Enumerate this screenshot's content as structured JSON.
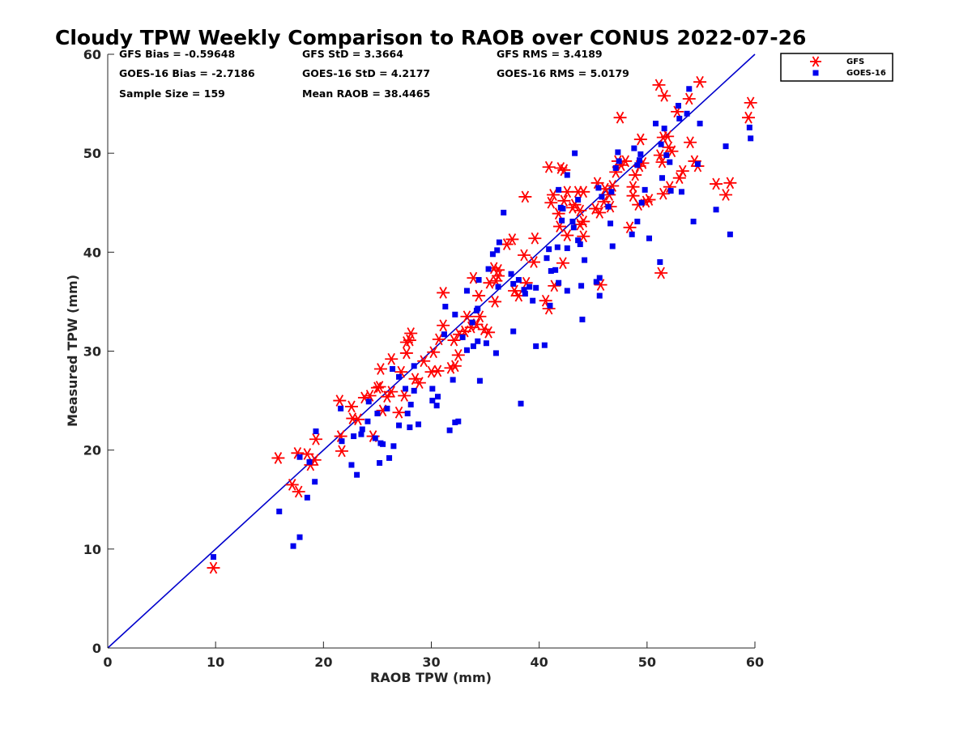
{
  "chart_data": {
    "type": "scatter",
    "title": "Cloudy TPW Weekly Comparison to RAOB over CONUS 2022-07-26",
    "xlabel": "RAOB TPW (mm)",
    "ylabel": "Measured TPW (mm)",
    "xlim": [
      0,
      60
    ],
    "ylim": [
      0,
      60
    ],
    "xticks": [
      0,
      10,
      20,
      30,
      40,
      50,
      60
    ],
    "yticks": [
      0,
      10,
      20,
      30,
      40,
      50,
      60
    ],
    "grid": false,
    "legend_position": "outside-top-right",
    "reference_line": {
      "from": [
        0,
        0
      ],
      "to": [
        60,
        60
      ],
      "color": "#0000cc"
    },
    "stats": {
      "gfs_bias": "GFS Bias = -0.59648",
      "gfs_std": "GFS StD = 3.3664",
      "gfs_rms": "GFS RMS = 3.4189",
      "goes_bias": "GOES-16 Bias = -2.7186",
      "goes_std": "GOES-16 StD = 4.2177",
      "goes_rms": "GOES-16 RMS = 5.0179",
      "sample_size": "Sample Size = 159",
      "mean_raob": "Mean RAOB = 38.4465"
    },
    "series": [
      {
        "name": "GFS",
        "marker": "asterisk",
        "color": "#ff0000",
        "points": [
          [
            9.8,
            8.1
          ],
          [
            15.8,
            19.2
          ],
          [
            17.1,
            16.5
          ],
          [
            17.6,
            19.7
          ],
          [
            17.7,
            15.8
          ],
          [
            18.5,
            19.6
          ],
          [
            18.8,
            18.5
          ],
          [
            19.3,
            21.1
          ],
          [
            19.2,
            19.0
          ],
          [
            21.5,
            25.0
          ],
          [
            21.6,
            21.4
          ],
          [
            21.7,
            19.9
          ],
          [
            22.6,
            24.4
          ],
          [
            22.7,
            23.2
          ],
          [
            23.2,
            23.1
          ],
          [
            23.8,
            25.3
          ],
          [
            24.3,
            25.5
          ],
          [
            24.6,
            21.4
          ],
          [
            25.0,
            26.3
          ],
          [
            25.2,
            26.4
          ],
          [
            25.3,
            28.2
          ],
          [
            25.5,
            24.0
          ],
          [
            25.9,
            25.4
          ],
          [
            26.3,
            29.2
          ],
          [
            26.3,
            25.9
          ],
          [
            27.0,
            23.8
          ],
          [
            27.2,
            27.9
          ],
          [
            27.5,
            25.5
          ],
          [
            27.7,
            29.8
          ],
          [
            27.7,
            30.9
          ],
          [
            28.0,
            31.1
          ],
          [
            28.1,
            31.8
          ],
          [
            28.5,
            27.2
          ],
          [
            28.9,
            26.8
          ],
          [
            29.3,
            29.0
          ],
          [
            30.0,
            27.9
          ],
          [
            30.2,
            29.9
          ],
          [
            30.6,
            28.0
          ],
          [
            30.7,
            31.2
          ],
          [
            31.1,
            32.6
          ],
          [
            31.1,
            35.9
          ],
          [
            31.8,
            28.3
          ],
          [
            32.2,
            28.5
          ],
          [
            32.1,
            31.1
          ],
          [
            32.5,
            29.6
          ],
          [
            32.6,
            31.7
          ],
          [
            33.1,
            32.0
          ],
          [
            33.3,
            33.5
          ],
          [
            33.7,
            32.4
          ],
          [
            33.9,
            37.4
          ],
          [
            34.2,
            32.7
          ],
          [
            34.4,
            35.6
          ],
          [
            34.5,
            33.5
          ],
          [
            34.9,
            32.2
          ],
          [
            35.3,
            31.9
          ],
          [
            35.4,
            36.9
          ],
          [
            35.8,
            38.4
          ],
          [
            35.9,
            35.0
          ],
          [
            36.0,
            37.1
          ],
          [
            36.2,
            37.6
          ],
          [
            36.2,
            38.2
          ],
          [
            37.0,
            40.8
          ],
          [
            37.5,
            41.3
          ],
          [
            37.7,
            36.1
          ],
          [
            38.1,
            35.6
          ],
          [
            38.6,
            39.7
          ],
          [
            38.7,
            45.6
          ],
          [
            38.8,
            36.9
          ],
          [
            39.5,
            39.0
          ],
          [
            39.6,
            41.4
          ],
          [
            40.6,
            35.1
          ],
          [
            40.9,
            34.3
          ],
          [
            40.9,
            48.6
          ],
          [
            41.1,
            45.0
          ],
          [
            41.3,
            45.8
          ],
          [
            41.4,
            36.6
          ],
          [
            41.8,
            43.9
          ],
          [
            41.9,
            42.6
          ],
          [
            42.0,
            48.5
          ],
          [
            42.3,
            48.3
          ],
          [
            42.2,
            38.9
          ],
          [
            42.3,
            45.2
          ],
          [
            42.6,
            41.7
          ],
          [
            42.6,
            46.1
          ],
          [
            43.1,
            44.5
          ],
          [
            43.3,
            44.8
          ],
          [
            43.6,
            46.1
          ],
          [
            43.8,
            42.8
          ],
          [
            43.8,
            44.2
          ],
          [
            44.1,
            41.6
          ],
          [
            44.1,
            43.1
          ],
          [
            44.1,
            46.1
          ],
          [
            45.2,
            44.4
          ],
          [
            45.4,
            47.0
          ],
          [
            45.6,
            44.0
          ],
          [
            45.7,
            36.7
          ],
          [
            46.0,
            45.1
          ],
          [
            46.1,
            46.4
          ],
          [
            46.5,
            45.8
          ],
          [
            46.6,
            44.6
          ],
          [
            46.8,
            46.7
          ],
          [
            47.1,
            48.1
          ],
          [
            47.3,
            49.2
          ],
          [
            47.5,
            53.6
          ],
          [
            47.6,
            48.8
          ],
          [
            48.0,
            49.2
          ],
          [
            48.4,
            42.5
          ],
          [
            48.7,
            45.7
          ],
          [
            48.7,
            46.6
          ],
          [
            48.9,
            47.8
          ],
          [
            49.2,
            44.8
          ],
          [
            49.3,
            48.7
          ],
          [
            49.4,
            51.4
          ],
          [
            49.6,
            49.0
          ],
          [
            49.9,
            45.1
          ],
          [
            50.2,
            45.3
          ],
          [
            51.1,
            56.9
          ],
          [
            51.2,
            49.8
          ],
          [
            51.3,
            37.9
          ],
          [
            51.4,
            49.1
          ],
          [
            51.5,
            45.9
          ],
          [
            51.5,
            51.6
          ],
          [
            51.6,
            55.8
          ],
          [
            51.9,
            51.7
          ],
          [
            52.0,
            50.6
          ],
          [
            52.1,
            46.6
          ],
          [
            52.3,
            50.2
          ],
          [
            52.8,
            54.2
          ],
          [
            53.0,
            47.5
          ],
          [
            53.3,
            48.2
          ],
          [
            53.9,
            55.5
          ],
          [
            54.0,
            51.1
          ],
          [
            54.4,
            49.2
          ],
          [
            54.7,
            48.7
          ],
          [
            54.9,
            57.2
          ],
          [
            56.4,
            46.9
          ],
          [
            57.3,
            45.8
          ],
          [
            57.7,
            47.0
          ],
          [
            59.4,
            53.6
          ],
          [
            59.6,
            55.1
          ]
        ]
      },
      {
        "name": "GOES-16",
        "marker": "square",
        "color": "#0000ee",
        "points": [
          [
            9.8,
            9.2
          ],
          [
            15.9,
            13.8
          ],
          [
            17.2,
            10.3
          ],
          [
            17.8,
            11.2
          ],
          [
            17.8,
            19.3
          ],
          [
            18.5,
            15.2
          ],
          [
            18.7,
            18.8
          ],
          [
            19.2,
            16.8
          ],
          [
            19.3,
            21.9
          ],
          [
            21.6,
            24.2
          ],
          [
            21.7,
            20.9
          ],
          [
            22.6,
            18.5
          ],
          [
            22.8,
            21.4
          ],
          [
            23.1,
            17.5
          ],
          [
            23.5,
            21.6
          ],
          [
            23.6,
            22.1
          ],
          [
            24.1,
            22.9
          ],
          [
            24.2,
            24.9
          ],
          [
            24.8,
            21.2
          ],
          [
            25.0,
            23.7
          ],
          [
            25.2,
            18.7
          ],
          [
            25.3,
            20.7
          ],
          [
            25.5,
            20.6
          ],
          [
            25.9,
            24.2
          ],
          [
            26.1,
            19.2
          ],
          [
            26.4,
            28.2
          ],
          [
            26.5,
            20.4
          ],
          [
            27.0,
            27.4
          ],
          [
            27.0,
            22.5
          ],
          [
            27.6,
            26.2
          ],
          [
            27.8,
            23.7
          ],
          [
            28.0,
            22.3
          ],
          [
            28.1,
            24.6
          ],
          [
            28.4,
            26.0
          ],
          [
            28.4,
            28.5
          ],
          [
            28.8,
            22.6
          ],
          [
            30.1,
            26.2
          ],
          [
            30.1,
            25.0
          ],
          [
            30.5,
            24.5
          ],
          [
            30.6,
            25.4
          ],
          [
            31.2,
            31.7
          ],
          [
            31.3,
            34.5
          ],
          [
            31.7,
            22.0
          ],
          [
            32.0,
            27.1
          ],
          [
            32.2,
            22.8
          ],
          [
            32.5,
            22.9
          ],
          [
            32.2,
            33.7
          ],
          [
            32.9,
            31.4
          ],
          [
            33.3,
            36.1
          ],
          [
            33.3,
            30.1
          ],
          [
            33.8,
            32.9
          ],
          [
            33.9,
            30.5
          ],
          [
            34.3,
            31.0
          ],
          [
            34.2,
            34.1
          ],
          [
            34.3,
            34.3
          ],
          [
            34.4,
            37.2
          ],
          [
            34.5,
            27.0
          ],
          [
            35.1,
            30.8
          ],
          [
            35.3,
            38.3
          ],
          [
            35.7,
            39.8
          ],
          [
            36.0,
            29.8
          ],
          [
            36.1,
            40.2
          ],
          [
            36.2,
            36.5
          ],
          [
            36.3,
            41.0
          ],
          [
            36.7,
            44.0
          ],
          [
            37.4,
            37.8
          ],
          [
            37.6,
            36.8
          ],
          [
            37.6,
            32.0
          ],
          [
            38.1,
            37.2
          ],
          [
            38.3,
            24.7
          ],
          [
            38.6,
            36.2
          ],
          [
            38.7,
            35.8
          ],
          [
            39.1,
            36.5
          ],
          [
            39.4,
            35.1
          ],
          [
            39.7,
            36.4
          ],
          [
            39.7,
            30.5
          ],
          [
            40.5,
            30.6
          ],
          [
            40.7,
            39.4
          ],
          [
            40.9,
            40.3
          ],
          [
            41.0,
            34.6
          ],
          [
            41.1,
            38.1
          ],
          [
            41.5,
            38.2
          ],
          [
            41.7,
            40.5
          ],
          [
            41.8,
            36.9
          ],
          [
            42.0,
            44.5
          ],
          [
            41.8,
            46.3
          ],
          [
            42.1,
            43.2
          ],
          [
            42.2,
            44.4
          ],
          [
            42.6,
            36.1
          ],
          [
            42.6,
            40.4
          ],
          [
            42.6,
            47.8
          ],
          [
            43.1,
            43.1
          ],
          [
            43.2,
            42.5
          ],
          [
            43.3,
            50.0
          ],
          [
            43.6,
            45.3
          ],
          [
            43.6,
            41.2
          ],
          [
            43.8,
            40.8
          ],
          [
            43.9,
            36.6
          ],
          [
            44.0,
            33.2
          ],
          [
            44.2,
            39.2
          ],
          [
            45.3,
            37.0
          ],
          [
            45.5,
            46.5
          ],
          [
            45.6,
            37.4
          ],
          [
            45.6,
            35.6
          ],
          [
            45.8,
            45.6
          ],
          [
            46.4,
            44.6
          ],
          [
            46.6,
            42.9
          ],
          [
            46.7,
            46.1
          ],
          [
            46.8,
            40.6
          ],
          [
            47.1,
            48.5
          ],
          [
            47.3,
            50.1
          ],
          [
            47.4,
            49.2
          ],
          [
            48.6,
            41.8
          ],
          [
            48.8,
            50.5
          ],
          [
            49.1,
            48.8
          ],
          [
            49.1,
            43.1
          ],
          [
            49.3,
            49.3
          ],
          [
            49.4,
            49.9
          ],
          [
            49.5,
            45.0
          ],
          [
            49.8,
            46.3
          ],
          [
            50.2,
            41.4
          ],
          [
            50.8,
            53.0
          ],
          [
            51.2,
            39.0
          ],
          [
            51.3,
            50.9
          ],
          [
            51.4,
            47.5
          ],
          [
            51.6,
            52.5
          ],
          [
            51.8,
            49.8
          ],
          [
            52.1,
            49.1
          ],
          [
            52.2,
            46.2
          ],
          [
            52.9,
            54.8
          ],
          [
            53.0,
            53.5
          ],
          [
            53.2,
            46.1
          ],
          [
            53.7,
            54.0
          ],
          [
            53.9,
            56.5
          ],
          [
            54.3,
            43.1
          ],
          [
            54.7,
            48.9
          ],
          [
            54.9,
            53.0
          ],
          [
            56.4,
            44.3
          ],
          [
            57.3,
            50.7
          ],
          [
            57.7,
            41.8
          ],
          [
            59.5,
            52.6
          ],
          [
            59.6,
            51.5
          ]
        ]
      }
    ]
  }
}
